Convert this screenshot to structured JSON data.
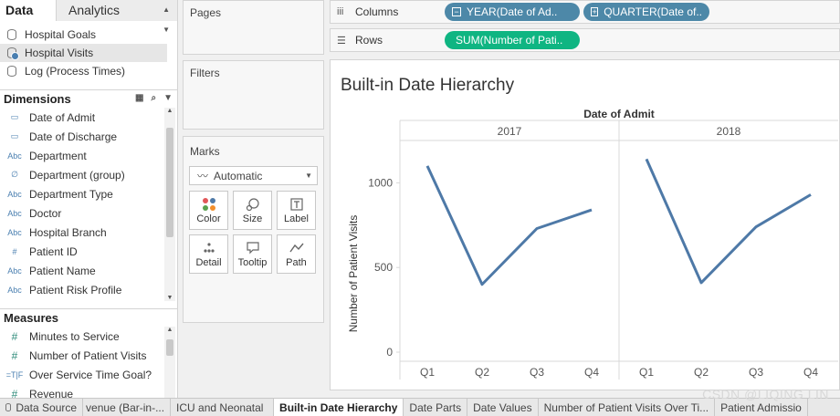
{
  "left_pane": {
    "tabs": [
      "Data",
      "Analytics"
    ],
    "data_sources": [
      "Hospital Goals",
      "Hospital Visits",
      "Log (Process Times)"
    ],
    "dimensions_title": "Dimensions",
    "dimensions": [
      {
        "icon": "calendar-icon",
        "glyph": "▭",
        "label": "Date of Admit"
      },
      {
        "icon": "calendar-icon",
        "glyph": "▭",
        "label": "Date of Discharge"
      },
      {
        "icon": "string-type-icon",
        "glyph": "Abc",
        "label": "Department"
      },
      {
        "icon": "group-icon",
        "glyph": "∅",
        "label": "Department (group)"
      },
      {
        "icon": "string-type-icon",
        "glyph": "Abc",
        "label": "Department Type"
      },
      {
        "icon": "string-type-icon",
        "glyph": "Abc",
        "label": "Doctor"
      },
      {
        "icon": "string-type-icon",
        "glyph": "Abc",
        "label": "Hospital Branch"
      },
      {
        "icon": "number-type-icon",
        "glyph": "#",
        "label": "Patient ID"
      },
      {
        "icon": "string-type-icon",
        "glyph": "Abc",
        "label": "Patient Name"
      },
      {
        "icon": "string-type-icon",
        "glyph": "Abc",
        "label": "Patient Risk Profile"
      }
    ],
    "measures_title": "Measures",
    "measures": [
      {
        "icon": "number-type-icon",
        "glyph": "#",
        "label": "Minutes to Service"
      },
      {
        "icon": "number-type-icon",
        "glyph": "#",
        "label": "Number of Patient Visits"
      },
      {
        "icon": "boolean-type-icon",
        "glyph": "=T|F",
        "label": "Over Service Time Goal?"
      },
      {
        "icon": "number-type-icon",
        "glyph": "#",
        "label": "Revenue"
      }
    ]
  },
  "cards": {
    "pages": "Pages",
    "filters": "Filters",
    "marks": "Marks",
    "mark_type": "Automatic",
    "mark_buttons": [
      {
        "label": "Color",
        "icon": "color-icon"
      },
      {
        "label": "Size",
        "icon": "size-icon"
      },
      {
        "label": "Label",
        "icon": "label-icon"
      },
      {
        "label": "Detail",
        "icon": "detail-icon"
      },
      {
        "label": "Tooltip",
        "icon": "tooltip-icon"
      },
      {
        "label": "Path",
        "icon": "path-icon"
      }
    ]
  },
  "shelves": {
    "columns_label": "Columns",
    "rows_label": "Rows",
    "column_pills": [
      "YEAR(Date of Ad..",
      "QUARTER(Date of.."
    ],
    "row_pills": [
      "SUM(Number of Pati.."
    ]
  },
  "chart_data": {
    "type": "line",
    "title": "Built-in Date Hierarchy",
    "header": "Date of Admit",
    "panes": [
      "2017",
      "2018"
    ],
    "categories": [
      "Q1",
      "Q2",
      "Q3",
      "Q4"
    ],
    "series": [
      {
        "pane": "2017",
        "values": [
          1100,
          400,
          730,
          840
        ]
      },
      {
        "pane": "2018",
        "values": [
          1140,
          410,
          740,
          930
        ]
      }
    ],
    "ylabel": "Number of Patient Visits",
    "yticks": [
      0,
      500,
      1000
    ],
    "ylim": [
      0,
      1250
    ],
    "line_color": "#4e79a7",
    "grid": false
  },
  "bottom_tabs": [
    "Data Source",
    "venue (Bar-in-...",
    "ICU and Neonatal",
    "Built-in Date Hierarchy",
    "Date Parts",
    "Date Values",
    "Number of Patient Visits Over Ti...",
    "Patient Admissio"
  ],
  "active_tab": "Built-in Date Hierarchy",
  "watermark": "CSDN @LIQING LIN"
}
